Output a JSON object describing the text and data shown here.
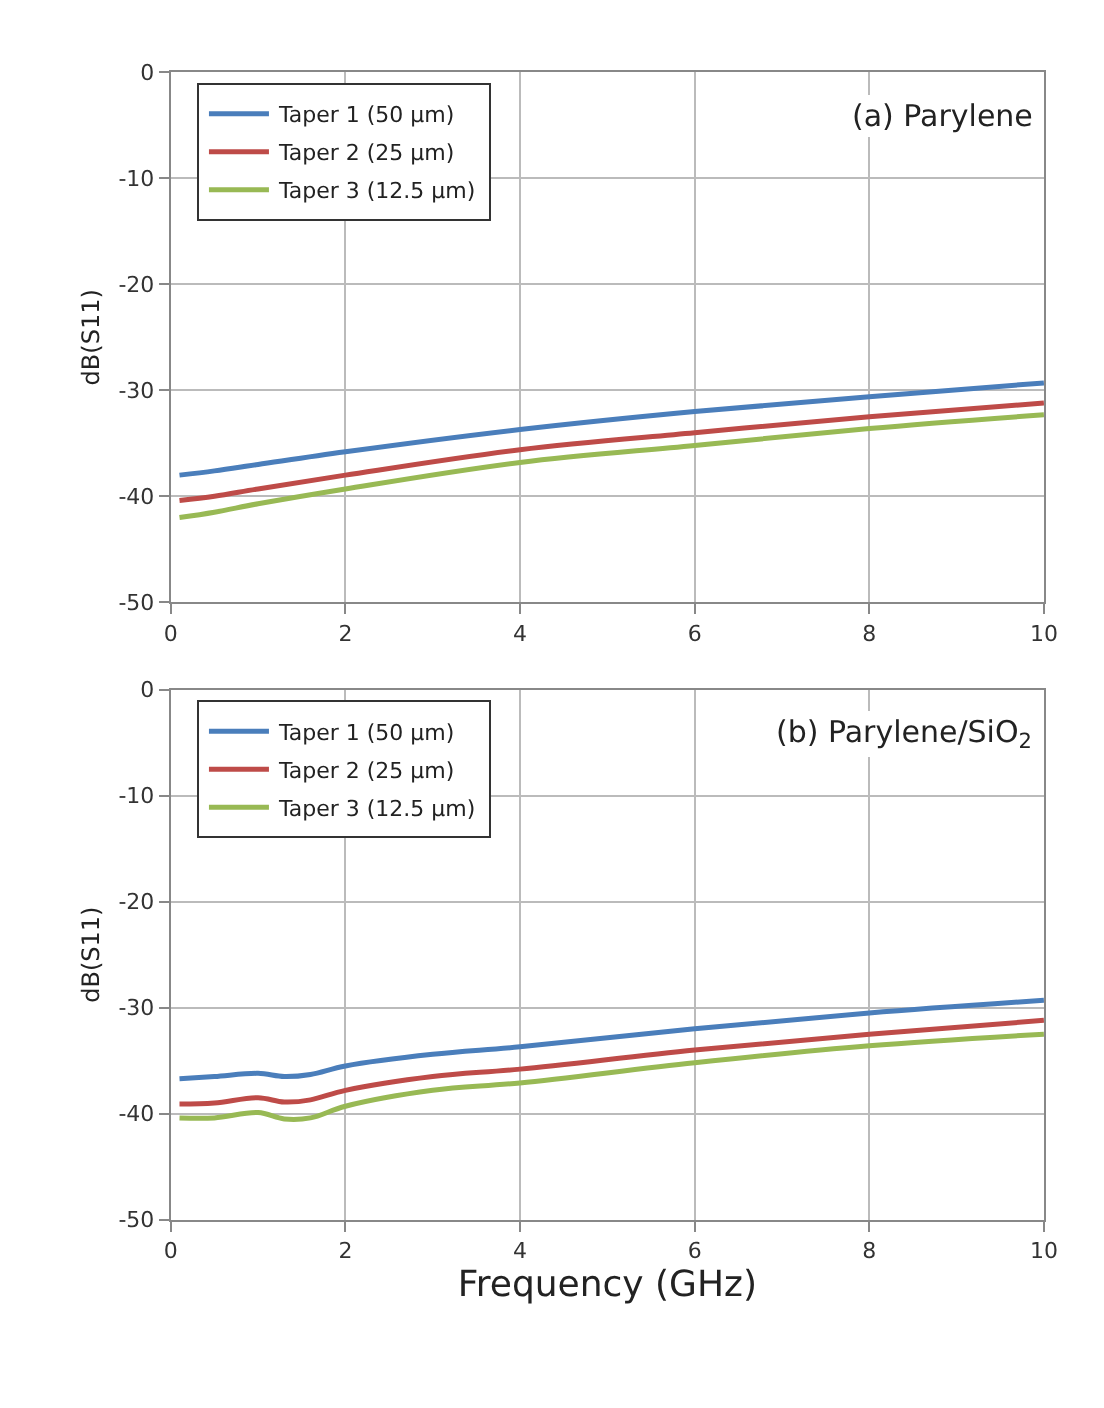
{
  "chart_data": [
    {
      "type": "line",
      "ylabel": "dB(S11)",
      "annotations": [
        "(a) Parylene"
      ],
      "xlim": [
        0,
        10
      ],
      "xticks": [
        0,
        2,
        4,
        6,
        8,
        10
      ],
      "ylim": [
        -50,
        0
      ],
      "yticks": [
        -50,
        -40,
        -30,
        -20,
        -10,
        0
      ],
      "grid": true,
      "legend": "top left",
      "marker": "none",
      "line_style": "solid",
      "series": [
        {
          "name": "Taper 1 (50 µm)",
          "color": "#4a7ebb",
          "x": [
            0.1,
            0.5,
            1,
            2,
            4,
            6,
            8,
            10
          ],
          "values": [
            -38,
            -37.6,
            -37,
            -35.8,
            -33.7,
            -32,
            -30.6,
            -29.3
          ]
        },
        {
          "name": "Taper 2 (25 µm)",
          "color": "#be4b48",
          "x": [
            0.1,
            0.5,
            1,
            2,
            4,
            6,
            8,
            10
          ],
          "values": [
            -40.4,
            -40,
            -39.3,
            -38,
            -35.6,
            -34,
            -32.5,
            -31.2
          ]
        },
        {
          "name": "Taper 3 (12.5 µm)",
          "color": "#98b954",
          "x": [
            0.1,
            0.5,
            1,
            2,
            4,
            6,
            8,
            10
          ],
          "values": [
            -42,
            -41.5,
            -40.7,
            -39.3,
            -36.8,
            -35.2,
            -33.6,
            -32.3
          ]
        }
      ]
    },
    {
      "type": "line",
      "xlabel": "Frequency (GHz)",
      "ylabel": "dB(S11)",
      "annotations": [
        "(b) Parylene/SiO$_{2}$"
      ],
      "xlim": [
        0,
        10
      ],
      "xticks": [
        0,
        2,
        4,
        6,
        8,
        10
      ],
      "ylim": [
        -50,
        0
      ],
      "yticks": [
        -50,
        -40,
        -30,
        -20,
        -10,
        0
      ],
      "grid": true,
      "legend": "top left",
      "marker": "none",
      "line_style": "solid",
      "series": [
        {
          "name": "Taper 1 (50 µm)",
          "color": "#4a7ebb",
          "x": [
            0.1,
            0.5,
            1,
            1.3,
            1.6,
            2,
            3,
            4,
            6,
            8,
            10
          ],
          "values": [
            -36.7,
            -36.5,
            -36.2,
            -36.5,
            -36.3,
            -35.5,
            -34.4,
            -33.7,
            -32,
            -30.5,
            -29.3
          ]
        },
        {
          "name": "Taper 2 (25 µm)",
          "color": "#be4b48",
          "x": [
            0.1,
            0.5,
            1,
            1.3,
            1.6,
            2,
            3,
            4,
            6,
            8,
            10
          ],
          "values": [
            -39.1,
            -39,
            -38.5,
            -38.9,
            -38.7,
            -37.8,
            -36.5,
            -35.8,
            -34,
            -32.5,
            -31.2
          ]
        },
        {
          "name": "Taper 3 (12.5 µm)",
          "color": "#98b954",
          "x": [
            0.1,
            0.5,
            1,
            1.3,
            1.6,
            2,
            3,
            4,
            6,
            8,
            10
          ],
          "values": [
            -40.4,
            -40.4,
            -39.9,
            -40.5,
            -40.4,
            -39.3,
            -37.8,
            -37.1,
            -35.2,
            -33.6,
            -32.5
          ]
        }
      ]
    }
  ]
}
